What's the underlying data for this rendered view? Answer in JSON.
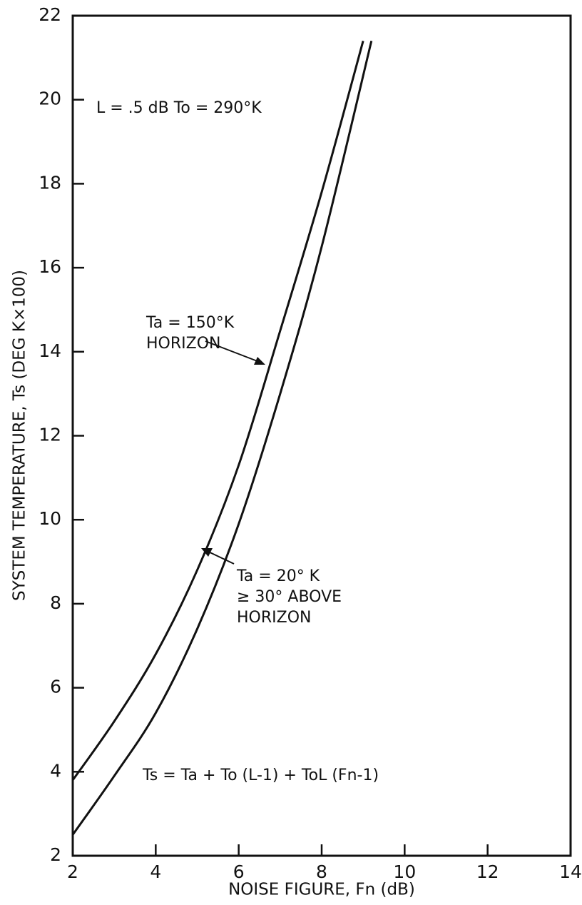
{
  "chart_data": {
    "type": "line",
    "xlabel": "NOISE FIGURE, Fn (dB)",
    "ylabel": "SYSTEM TEMPERATURE, Ts (DEG K×100)",
    "xlim": [
      2,
      14
    ],
    "xticks": [
      2,
      4,
      6,
      8,
      10,
      12,
      14
    ],
    "ylim": [
      2,
      22
    ],
    "yticks": [
      2,
      4,
      6,
      8,
      10,
      12,
      14,
      16,
      18,
      20,
      22
    ],
    "grid": false,
    "series": [
      {
        "name": "Ta = 150°K HORIZON",
        "color": "#111111",
        "x": [
          2,
          3,
          4,
          5,
          6,
          7,
          8,
          9
        ],
        "values": [
          3.8,
          5.2,
          6.8,
          8.8,
          11.3,
          14.5,
          17.8,
          21.4
        ]
      },
      {
        "name": "Ta = 20° K ≥30° ABOVE HORIZON",
        "color": "#111111",
        "x": [
          2,
          3,
          4,
          5,
          6,
          7,
          8,
          9.2
        ],
        "values": [
          2.5,
          3.9,
          5.4,
          7.4,
          9.9,
          13.0,
          16.5,
          21.4
        ]
      }
    ],
    "annotations": [
      {
        "text": [
          "L = .5 dB  To = 290°K"
        ]
      },
      {
        "text": [
          "Ta = 150°K",
          "HORIZON"
        ]
      },
      {
        "text": [
          "Ta = 20° K",
          "≥ 30° ABOVE",
          "HORIZON"
        ]
      },
      {
        "text": [
          "Ts = Ta + To (L-1) + ToL (Fn-1)"
        ]
      }
    ]
  }
}
